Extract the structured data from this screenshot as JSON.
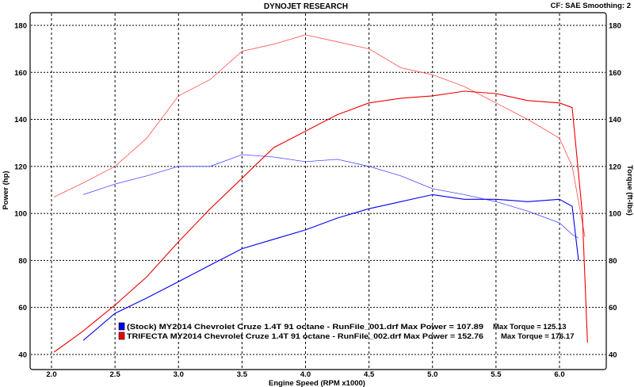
{
  "chart_data": {
    "type": "line",
    "title": "DYNOJET RESEARCH",
    "subtitle": "CF: SAE  Smoothing: 2",
    "xlabel": "Engine Speed (RPM x1000)",
    "ylabel": "Power (hp)",
    "y2label": "Torque (ft-lbs)",
    "xlim": [
      1.98,
      6.35
    ],
    "ylim": [
      36,
      183
    ],
    "xticks": [
      "2.0",
      "2.5",
      "3.0",
      "3.5",
      "4.0",
      "4.5",
      "5.0",
      "5.5",
      "6.0"
    ],
    "yticks": [
      "40",
      "60",
      "80",
      "100",
      "120",
      "140",
      "160",
      "180"
    ],
    "grid": true,
    "legend_position": "bottom-left",
    "series": [
      {
        "name": "Stock Torque",
        "run": "stock",
        "kind": "torque",
        "color": "#4a4aff",
        "x": [
          2.25,
          2.5,
          2.75,
          3.0,
          3.25,
          3.5,
          3.75,
          4.0,
          4.25,
          4.5,
          4.75,
          5.0,
          5.25,
          5.5,
          5.75,
          6.0,
          6.1,
          6.15
        ],
        "y": [
          108,
          112.5,
          116,
          120,
          120,
          125,
          124,
          122,
          123,
          120,
          116,
          110.5,
          108,
          105,
          101,
          96,
          91,
          89.5
        ]
      },
      {
        "name": "Stock Power",
        "run": "stock",
        "kind": "power",
        "color": "#0000ee",
        "x": [
          2.25,
          2.5,
          2.75,
          3.0,
          3.25,
          3.5,
          3.75,
          4.0,
          4.25,
          4.5,
          4.75,
          5.0,
          5.25,
          5.5,
          5.75,
          6.0,
          6.1,
          6.15
        ],
        "y": [
          46,
          57.5,
          64,
          71,
          78,
          85,
          89,
          93,
          98,
          102,
          105,
          108,
          106,
          106,
          105,
          106,
          103,
          80
        ]
      },
      {
        "name": "Trifecta Torque",
        "run": "trifecta",
        "kind": "torque",
        "color": "#ff5050",
        "x": [
          2.02,
          2.25,
          2.5,
          2.75,
          3.0,
          3.25,
          3.5,
          3.75,
          4.0,
          4.25,
          4.5,
          4.75,
          5.0,
          5.25,
          5.5,
          5.75,
          6.0,
          6.1,
          6.2
        ],
        "y": [
          107,
          113,
          120,
          132,
          150,
          157,
          169,
          172,
          176,
          173,
          170,
          162,
          159,
          154,
          147,
          140,
          132,
          120,
          90
        ]
      },
      {
        "name": "Trifecta Power",
        "run": "trifecta",
        "kind": "power",
        "color": "#ee0000",
        "x": [
          2.02,
          2.25,
          2.5,
          2.75,
          3.0,
          3.25,
          3.5,
          3.75,
          4.0,
          4.25,
          4.5,
          4.75,
          5.0,
          5.25,
          5.5,
          5.75,
          6.0,
          6.1,
          6.18,
          6.22
        ],
        "y": [
          41,
          50,
          61,
          73,
          88,
          102,
          115,
          128,
          135,
          142,
          147,
          149,
          150,
          152,
          151,
          148,
          147,
          145,
          100,
          45
        ]
      }
    ],
    "legend": [
      {
        "color": "#0000ee",
        "label": "(Stock) MY2014 Chevrolet Cruze 1.4T 91 octane - RunFile_001.drf Max Power = 107.89",
        "torque": "Max Torque = 125.13"
      },
      {
        "color": "#ee0000",
        "label": "TRIFECTA MY2014 Chevrolet Cruze 1.4T 91 octane - RunFile_002.drf Max Power = 152.76",
        "torque": "Max Torque = 176.17"
      }
    ]
  }
}
